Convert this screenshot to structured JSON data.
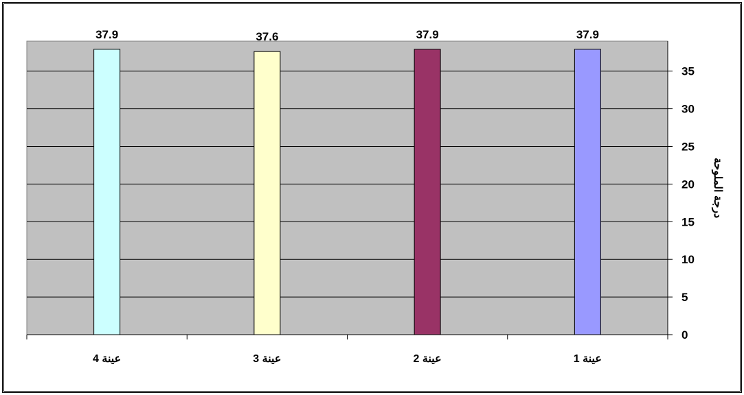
{
  "chart_data": {
    "type": "bar",
    "categories": [
      "عينة 4",
      "عينة 3",
      "عينة 2",
      "عينة 1"
    ],
    "values": [
      37.9,
      37.6,
      37.9,
      37.9
    ],
    "data_labels": [
      "37.9",
      "37.6",
      "37.9",
      "37.9"
    ],
    "bar_colors": [
      "#ccffff",
      "#ffffcc",
      "#993366",
      "#9999ff"
    ],
    "title": "",
    "xlabel": "",
    "ylabel": "درجة الملوحة",
    "ylim": [
      0,
      40
    ],
    "yticks": [
      0,
      5,
      10,
      15,
      20,
      25,
      30,
      35
    ],
    "y_axis_side": "right",
    "grid": true,
    "plot_background": "#c0c0c0",
    "legend": "none"
  }
}
